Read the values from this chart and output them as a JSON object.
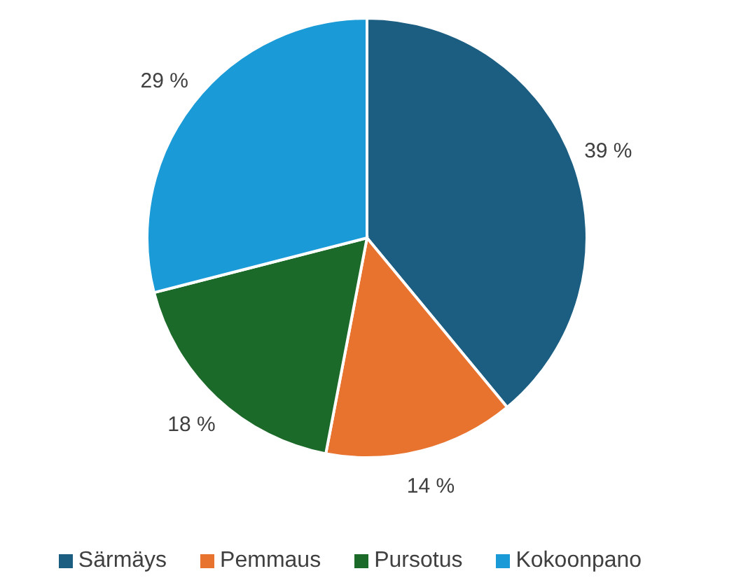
{
  "chart_data": {
    "type": "pie",
    "categories": [
      "Särmäys",
      "Pemmaus",
      "Pursotus",
      "Kokoonpano"
    ],
    "values": [
      39,
      14,
      18,
      29
    ],
    "colors": [
      "#1b5e82",
      "#e8732f",
      "#1c6a29",
      "#1a9ad6"
    ],
    "value_labels": [
      "39 %",
      "14 %",
      "18 %",
      "29 %"
    ],
    "legend": "bottom"
  }
}
